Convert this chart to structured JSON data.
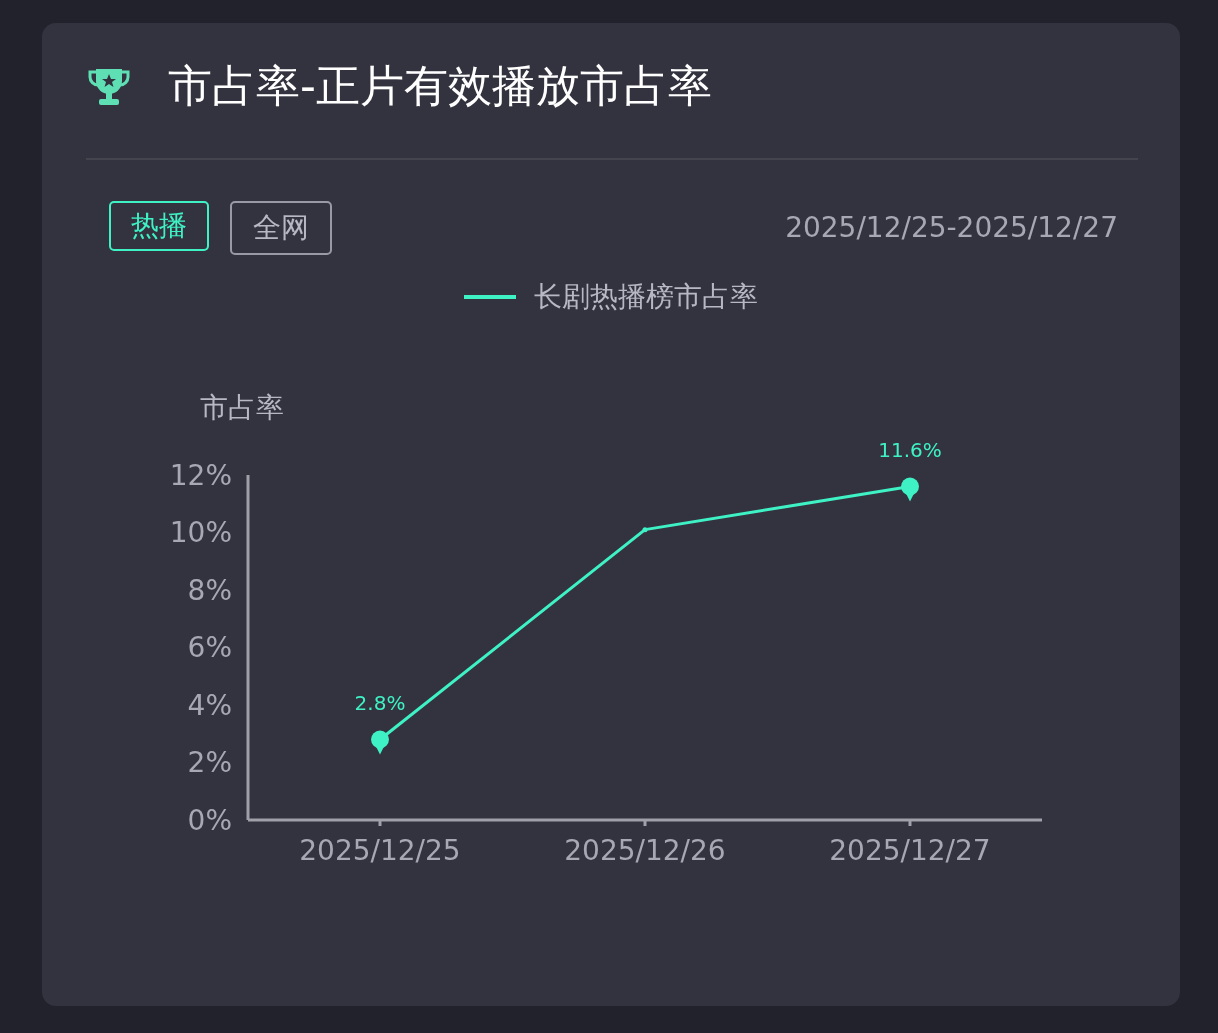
{
  "chart_data": {
    "type": "line",
    "title": "市占率-正片有效播放市占率",
    "ylabel": "市占率",
    "annotations": [
      "热播",
      "全网",
      "2025/12/25-2025/12/27"
    ],
    "categories": [
      "2025/12/25",
      "2025/12/26",
      "2025/12/27"
    ],
    "series": [
      {
        "name": "长剧热播榜市占率",
        "color": "#3ef2c6",
        "values": [
          2.8,
          10.1,
          11.6
        ],
        "value_labels": [
          "2.8%",
          null,
          "11.6%"
        ]
      }
    ],
    "ylim": [
      0,
      12
    ],
    "yticks": [
      {
        "value": 0,
        "label": "0%"
      },
      {
        "value": 2,
        "label": "2%"
      },
      {
        "value": 4,
        "label": "4%"
      },
      {
        "value": 6,
        "label": "6%"
      },
      {
        "value": 8,
        "label": "8%"
      },
      {
        "value": 10,
        "label": "10%"
      },
      {
        "value": 12,
        "label": "12%"
      }
    ],
    "grid": false,
    "legend": "top",
    "marker": "circle",
    "line_style": "solid"
  }
}
